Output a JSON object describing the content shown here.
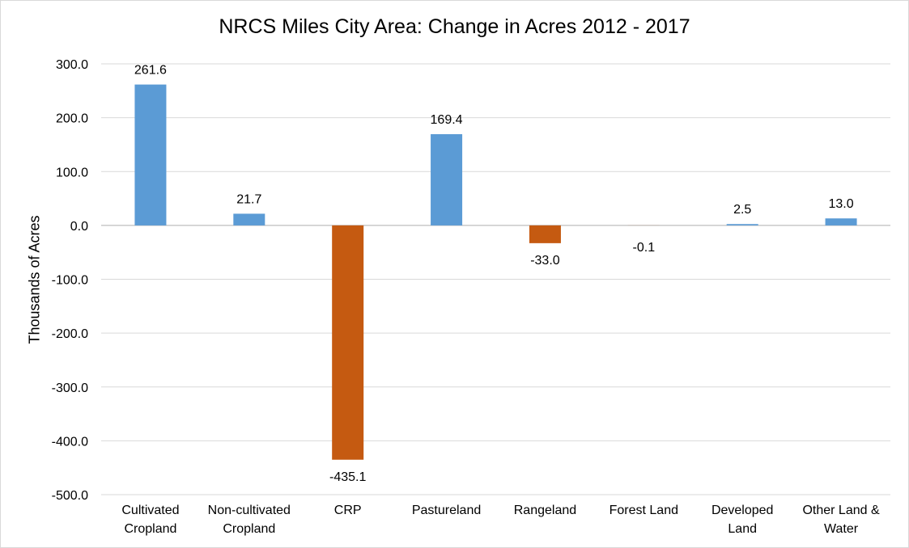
{
  "chart_data": {
    "type": "bar",
    "title": "NRCS Miles City Area: Change in Acres 2012 - 2017",
    "xlabel": "",
    "ylabel": "Thousands of Acres",
    "categories": [
      [
        "Cultivated",
        "Cropland"
      ],
      [
        "Non-cultivated",
        "Cropland"
      ],
      [
        "CRP"
      ],
      [
        "Pastureland"
      ],
      [
        "Rangeland"
      ],
      [
        "Forest Land"
      ],
      [
        "Developed",
        "Land"
      ],
      [
        "Other Land &",
        "Water"
      ]
    ],
    "values": [
      261.6,
      21.7,
      -435.1,
      169.4,
      -33.0,
      -0.1,
      2.5,
      13.0
    ],
    "data_labels": [
      "261.6",
      "21.7",
      "-435.1",
      "169.4",
      "-33.0",
      "-0.1",
      "2.5",
      "13.0"
    ],
    "ylim": [
      -500,
      300
    ],
    "yticks": [
      300,
      200,
      100,
      0,
      -100,
      -200,
      -300,
      -400,
      -500
    ],
    "ytick_labels": [
      "300.0",
      "200.0",
      "100.0",
      "0.0",
      "-100.0",
      "-200.0",
      "-300.0",
      "-400.0",
      "-500.0"
    ],
    "grid": true,
    "legend": "none",
    "colors": {
      "positive": "#5b9bd5",
      "negative": "#c55a11",
      "grid": "#d9d9d9",
      "axis": "#bfbfbf"
    }
  }
}
